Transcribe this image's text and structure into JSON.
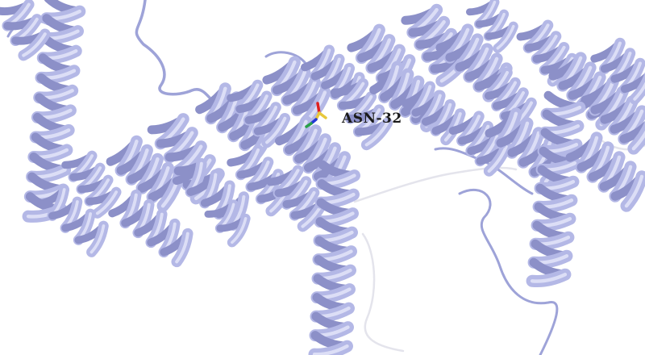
{
  "viewer": {
    "background_color": "#ffffff",
    "protein_color": "#b4b8e6",
    "protein_shade_color": "#8c90c8",
    "protein_highlight_color": "#dcdef6",
    "coil_color": "#9ea3d8",
    "loop_color_light": "#e4e4ec"
  },
  "residue": {
    "label": "ASN-32",
    "atom_colors": {
      "carbon": "#e8c83c",
      "nitrogen": "#2438d8",
      "oxygen": "#e02020",
      "other": "#2aa04a"
    }
  }
}
